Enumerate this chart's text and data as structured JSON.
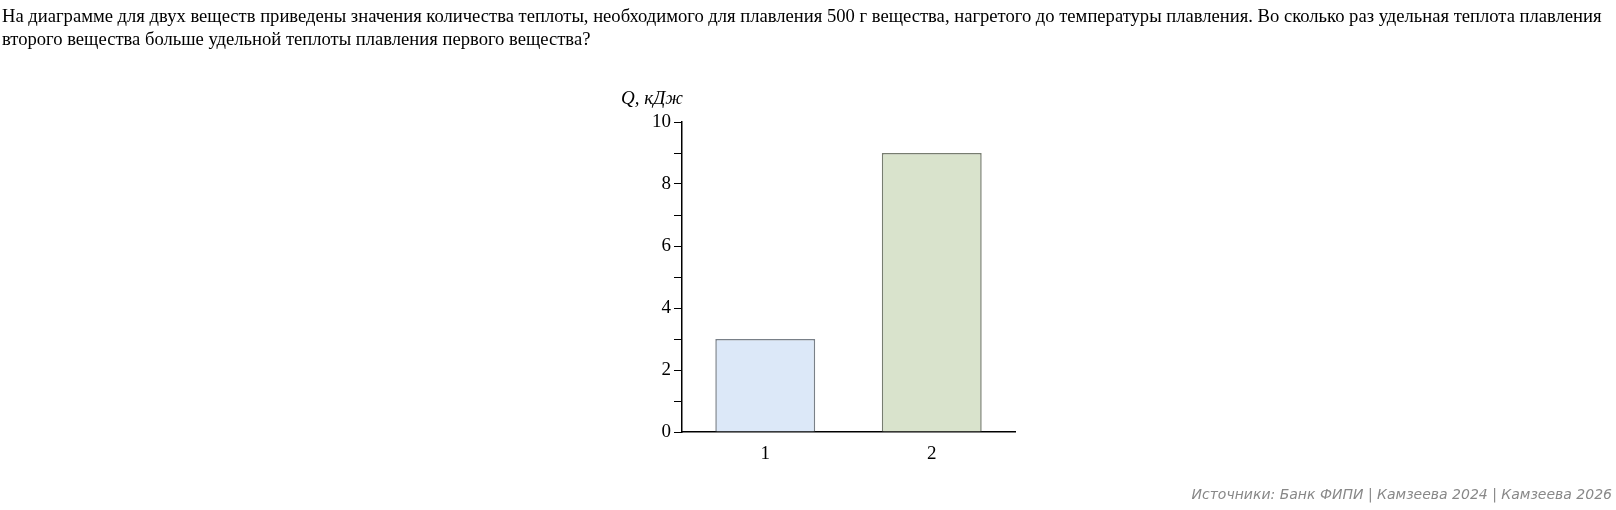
{
  "chart_data": {
    "type": "bar",
    "title": "На диаграмме для двух веществ приведены значения количества теплоты, необходимого для плавления 500 г вещества, нагретого до температуры плавления. Во сколько раз удельная теплота плавления второго вещества больше удельной теплоты плавления первого вещества?",
    "ylabel": "Q, кДж",
    "categories": [
      "1",
      "2"
    ],
    "values": [
      3,
      9
    ],
    "colors": [
      "#dce8f8",
      "#d9e3cc"
    ],
    "ylim": [
      0,
      10
    ],
    "yticks": [
      0,
      {
        "value": 1,
        "label": null
      },
      2,
      {
        "value": 3,
        "label": null
      },
      4,
      {
        "value": 5,
        "label": null
      },
      6,
      {
        "value": 7,
        "label": null
      },
      8,
      {
        "value": 9,
        "label": null
      },
      10
    ],
    "annotations": [
      "Источники: Банк ФИПИ | Камзеева 2024 | Камзеева 2026"
    ]
  }
}
